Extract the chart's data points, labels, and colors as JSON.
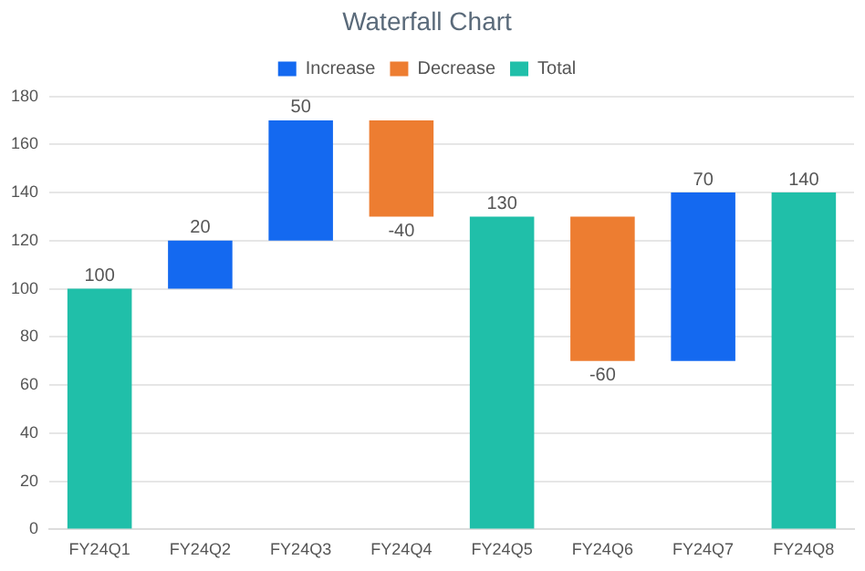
{
  "chart_data": {
    "type": "bar",
    "title": "Waterfall Chart",
    "categories": [
      "FY24Q1",
      "FY24Q2",
      "FY24Q3",
      "FY24Q4",
      "FY24Q5",
      "FY24Q6",
      "FY24Q7",
      "FY24Q8"
    ],
    "series": [
      {
        "name": "Increase",
        "color": "#1469f0",
        "values": [
          null,
          20,
          50,
          null,
          null,
          null,
          70,
          null
        ],
        "base": [
          null,
          100,
          120,
          null,
          null,
          null,
          70,
          null
        ]
      },
      {
        "name": "Decrease",
        "color": "#ed7d31",
        "values": [
          null,
          null,
          null,
          -40,
          null,
          -60,
          null,
          null
        ],
        "base": [
          null,
          null,
          null,
          170,
          null,
          130,
          null,
          null
        ]
      },
      {
        "name": "Total",
        "color": "#20bfa9",
        "values": [
          100,
          null,
          null,
          null,
          130,
          null,
          null,
          140
        ]
      }
    ],
    "ylim": [
      0,
      180
    ],
    "yticks": [
      0,
      20,
      40,
      60,
      80,
      100,
      120,
      140,
      160,
      180
    ],
    "grid": "y",
    "legend": "top",
    "data_labels": true
  }
}
